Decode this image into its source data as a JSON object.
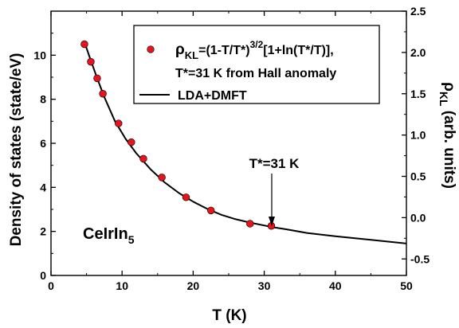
{
  "chart_data": {
    "type": "scatter",
    "xlabel": "T (K)",
    "ylabel_left": "Density of states (state/eV)",
    "ylabel_right_rho": "ρ",
    "ylabel_right_sub": "KL",
    "ylabel_right_unit": "(arb. units)",
    "xlim": [
      0,
      50
    ],
    "ylim_left": [
      0,
      12
    ],
    "ylim_right": [
      -0.7,
      2.5
    ],
    "x_ticks": [
      "0",
      "10",
      "20",
      "30",
      "40",
      "50"
    ],
    "y_left_ticks": [
      "0",
      "2",
      "4",
      "6",
      "8",
      "10"
    ],
    "y_right_ticks": [
      "-0.5",
      "0.0",
      "0.5",
      "1.0",
      "1.5",
      "2.0",
      "2.5"
    ],
    "grid": false,
    "legend_position": "top-right",
    "series": [
      {
        "name": "ρKL=(1-T/T*)3/2[1+ln(T*/T)], T*=31 K from Hall anomaly",
        "kind": "scatter",
        "color": "#e8141b",
        "axis": "left",
        "x": [
          4.7,
          5.6,
          6.5,
          7.3,
          9.5,
          11.3,
          13.0,
          15.6,
          19.0,
          22.5,
          28.0,
          31.0
        ],
        "y": [
          10.5,
          9.7,
          8.95,
          8.25,
          6.9,
          6.05,
          5.3,
          4.45,
          3.55,
          2.95,
          2.35,
          2.25
        ]
      },
      {
        "name": "LDA+DMFT",
        "kind": "line",
        "color": "#000000",
        "axis": "left",
        "x": [
          4.7,
          5.5,
          6.5,
          7.5,
          9.0,
          10.5,
          12.0,
          14.0,
          16.0,
          18.0,
          20.0,
          22.0,
          24.0,
          26.0,
          28.0,
          30.0,
          31.0,
          33.0,
          36.0,
          40.0,
          45.0,
          50.0
        ],
        "y": [
          10.6,
          9.85,
          8.95,
          8.1,
          7.0,
          6.2,
          5.55,
          4.82,
          4.22,
          3.74,
          3.35,
          3.02,
          2.75,
          2.55,
          2.4,
          2.27,
          2.2,
          2.1,
          1.93,
          1.78,
          1.62,
          1.45
        ]
      }
    ],
    "legend": {
      "scatter_main": "ρ",
      "scatter_sub": "KL",
      "scatter_eq1": "=(1-T/T*)",
      "scatter_sup": "3/2",
      "scatter_eq2": "[1+ln(T*/T)],",
      "scatter_line2": "T*=31 K from Hall anomaly",
      "line_label": "LDA+DMFT"
    },
    "annotations": {
      "tstar": "T*=31 K",
      "tstar_x": 31.0,
      "tstar_y": 2.25,
      "sample_main": "CeIrIn",
      "sample_sub": "5"
    }
  }
}
